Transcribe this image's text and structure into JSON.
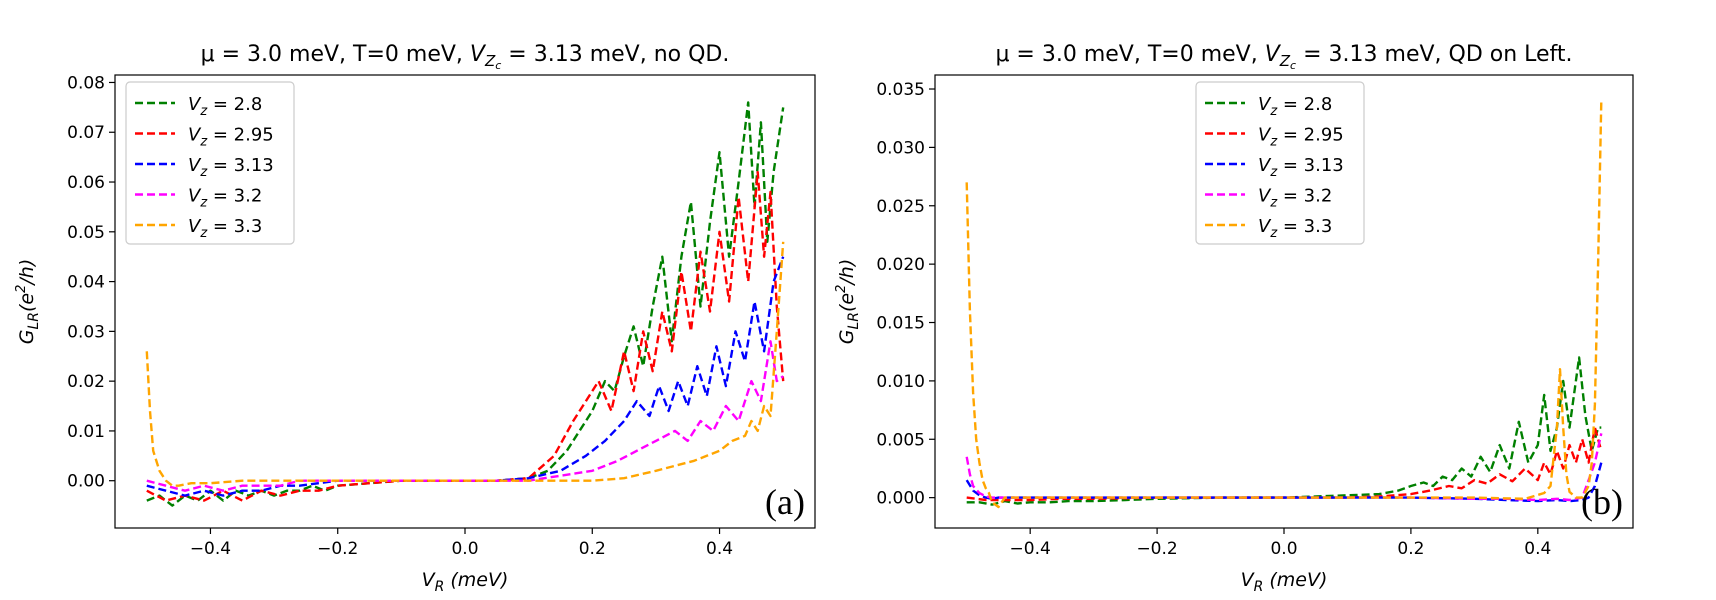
{
  "chart_data": [
    {
      "type": "line",
      "title_prefix": "μ = 3.0 meV, T=0 meV, ",
      "title_vz": "V",
      "title_vz_sub": "Z",
      "title_vz_subsub": "c",
      "title_suffix": " = 3.13 meV, no QD.",
      "xlabel_main": "V",
      "xlabel_sub": "R",
      "xlabel_unit": " (meV)",
      "ylabel_main": "G",
      "ylabel_sub": "LR",
      "ylabel_unit": "(e",
      "ylabel_sup": "2",
      "ylabel_tail": "/h)",
      "panel_label": "(a)",
      "xlim": [
        -0.55,
        0.55
      ],
      "ylim": [
        -0.0095,
        0.0815
      ],
      "xticks": [
        -0.4,
        -0.2,
        0.0,
        0.2,
        0.4
      ],
      "xtick_labels": [
        "−0.4",
        "−0.2",
        "0.0",
        "0.2",
        "0.4"
      ],
      "yticks": [
        0.0,
        0.01,
        0.02,
        0.03,
        0.04,
        0.05,
        0.06,
        0.07,
        0.08
      ],
      "ytick_labels": [
        "0.00",
        "0.01",
        "0.02",
        "0.03",
        "0.04",
        "0.05",
        "0.06",
        "0.07",
        "0.08"
      ],
      "legend_position": "upper-left",
      "series": [
        {
          "name": "2.8",
          "label_prefix": "V",
          "label_sub": "z",
          "label_value": " = 2.8",
          "color": "#008000",
          "x": [
            -0.5,
            -0.48,
            -0.46,
            -0.44,
            -0.42,
            -0.4,
            -0.38,
            -0.36,
            -0.34,
            -0.32,
            -0.3,
            -0.28,
            -0.26,
            -0.24,
            -0.22,
            -0.2,
            -0.15,
            -0.1,
            -0.05,
            0.0,
            0.05,
            0.1,
            0.13,
            0.16,
            0.18,
            0.2,
            0.22,
            0.235,
            0.25,
            0.265,
            0.28,
            0.295,
            0.31,
            0.325,
            0.34,
            0.355,
            0.37,
            0.385,
            0.4,
            0.415,
            0.43,
            0.445,
            0.455,
            0.465,
            0.475,
            0.485,
            0.5
          ],
          "y": [
            -0.004,
            -0.003,
            -0.005,
            -0.003,
            -0.004,
            -0.002,
            -0.004,
            -0.002,
            -0.003,
            -0.002,
            -0.003,
            -0.002,
            -0.002,
            -0.001,
            -0.002,
            -0.001,
            -0.0005,
            0.0,
            0.0,
            0.0,
            0.0,
            0.0005,
            0.002,
            0.006,
            0.01,
            0.014,
            0.02,
            0.018,
            0.025,
            0.031,
            0.023,
            0.035,
            0.045,
            0.028,
            0.045,
            0.056,
            0.035,
            0.052,
            0.066,
            0.045,
            0.06,
            0.076,
            0.055,
            0.072,
            0.048,
            0.062,
            0.075
          ]
        },
        {
          "name": "2.95",
          "label_prefix": "V",
          "label_sub": "z",
          "label_value": " = 2.95",
          "color": "#ff0000",
          "x": [
            -0.5,
            -0.47,
            -0.44,
            -0.41,
            -0.38,
            -0.35,
            -0.32,
            -0.29,
            -0.26,
            -0.23,
            -0.2,
            -0.15,
            -0.1,
            -0.05,
            0.0,
            0.05,
            0.1,
            0.14,
            0.17,
            0.19,
            0.21,
            0.23,
            0.25,
            0.265,
            0.28,
            0.295,
            0.31,
            0.325,
            0.34,
            0.355,
            0.37,
            0.385,
            0.4,
            0.415,
            0.43,
            0.445,
            0.46,
            0.47,
            0.48,
            0.49,
            0.5
          ],
          "y": [
            -0.002,
            -0.004,
            -0.003,
            -0.004,
            -0.002,
            -0.004,
            -0.002,
            -0.003,
            -0.002,
            -0.002,
            -0.001,
            -0.0005,
            0.0,
            0.0,
            0.0,
            0.0,
            0.0005,
            0.005,
            0.012,
            0.016,
            0.02,
            0.014,
            0.026,
            0.018,
            0.03,
            0.022,
            0.034,
            0.026,
            0.042,
            0.03,
            0.046,
            0.034,
            0.05,
            0.036,
            0.057,
            0.04,
            0.062,
            0.045,
            0.058,
            0.035,
            0.02
          ]
        },
        {
          "name": "3.13",
          "label_prefix": "V",
          "label_sub": "z",
          "label_value": " = 3.13",
          "color": "#0000ff",
          "x": [
            -0.5,
            -0.47,
            -0.44,
            -0.41,
            -0.38,
            -0.35,
            -0.32,
            -0.29,
            -0.26,
            -0.23,
            -0.2,
            -0.15,
            -0.1,
            -0.05,
            0.0,
            0.05,
            0.1,
            0.15,
            0.19,
            0.22,
            0.25,
            0.27,
            0.29,
            0.305,
            0.32,
            0.335,
            0.35,
            0.365,
            0.38,
            0.395,
            0.41,
            0.425,
            0.44,
            0.455,
            0.47,
            0.485,
            0.5
          ],
          "y": [
            -0.001,
            -0.002,
            -0.003,
            -0.002,
            -0.003,
            -0.002,
            -0.002,
            -0.001,
            -0.001,
            -0.0005,
            0.0,
            0.0,
            0.0,
            0.0,
            0.0,
            0.0,
            0.0005,
            0.002,
            0.005,
            0.008,
            0.012,
            0.016,
            0.013,
            0.019,
            0.014,
            0.02,
            0.015,
            0.023,
            0.017,
            0.027,
            0.019,
            0.03,
            0.024,
            0.036,
            0.026,
            0.04,
            0.045
          ]
        },
        {
          "name": "3.2",
          "label_prefix": "V",
          "label_sub": "z",
          "label_value": " = 3.2",
          "color": "#ff00ff",
          "x": [
            -0.5,
            -0.47,
            -0.44,
            -0.41,
            -0.38,
            -0.35,
            -0.32,
            -0.29,
            -0.26,
            -0.23,
            -0.2,
            -0.15,
            -0.1,
            -0.05,
            0.0,
            0.05,
            0.1,
            0.15,
            0.2,
            0.24,
            0.27,
            0.3,
            0.33,
            0.35,
            0.37,
            0.39,
            0.41,
            0.43,
            0.45,
            0.465,
            0.48,
            0.49,
            0.5
          ],
          "y": [
            0.0,
            -0.001,
            -0.002,
            -0.001,
            -0.002,
            -0.001,
            -0.001,
            -0.001,
            0.0,
            0.0,
            0.0,
            0.0,
            0.0,
            0.0,
            0.0,
            0.0,
            0.0,
            0.001,
            0.002,
            0.004,
            0.006,
            0.008,
            0.01,
            0.008,
            0.012,
            0.01,
            0.015,
            0.012,
            0.02,
            0.016,
            0.028,
            0.02,
            0.021
          ]
        },
        {
          "name": "3.3",
          "label_prefix": "V",
          "label_sub": "z",
          "label_value": " = 3.3",
          "color": "#ffa500",
          "x": [
            -0.5,
            -0.495,
            -0.49,
            -0.48,
            -0.47,
            -0.46,
            -0.45,
            -0.43,
            -0.4,
            -0.35,
            -0.3,
            -0.25,
            -0.2,
            -0.1,
            0.0,
            0.1,
            0.2,
            0.25,
            0.3,
            0.33,
            0.36,
            0.38,
            0.4,
            0.42,
            0.44,
            0.45,
            0.46,
            0.47,
            0.48,
            0.49,
            0.5
          ],
          "y": [
            0.026,
            0.014,
            0.006,
            0.002,
            0.0,
            -0.001,
            -0.001,
            -0.0005,
            -0.0005,
            0.0,
            0.0,
            0.0,
            0.0,
            0.0,
            0.0,
            0.0,
            0.0,
            0.0005,
            0.002,
            0.003,
            0.004,
            0.005,
            0.006,
            0.008,
            0.009,
            0.012,
            0.01,
            0.015,
            0.013,
            0.03,
            0.048
          ]
        }
      ]
    },
    {
      "type": "line",
      "title_prefix": "μ = 3.0 meV, T=0 meV, ",
      "title_vz": "V",
      "title_vz_sub": "Z",
      "title_vz_subsub": "c",
      "title_suffix": " = 3.13 meV, QD on Left.",
      "xlabel_main": "V",
      "xlabel_sub": "R",
      "xlabel_unit": " (meV)",
      "ylabel_main": "G",
      "ylabel_sub": "LR",
      "ylabel_unit": "(e",
      "ylabel_sup": "2",
      "ylabel_tail": "/h)",
      "panel_label": "(b)",
      "xlim": [
        -0.55,
        0.55
      ],
      "ylim": [
        -0.0026,
        0.0362
      ],
      "xticks": [
        -0.4,
        -0.2,
        0.0,
        0.2,
        0.4
      ],
      "xtick_labels": [
        "−0.4",
        "−0.2",
        "0.0",
        "0.2",
        "0.4"
      ],
      "yticks": [
        0.0,
        0.005,
        0.01,
        0.015,
        0.02,
        0.025,
        0.03,
        0.035
      ],
      "ytick_labels": [
        "0.000",
        "0.005",
        "0.010",
        "0.015",
        "0.020",
        "0.025",
        "0.030",
        "0.035"
      ],
      "legend_position": "upper-center",
      "series": [
        {
          "name": "2.8",
          "label_prefix": "V",
          "label_sub": "z",
          "label_value": " = 2.8",
          "color": "#008000",
          "x": [
            -0.5,
            -0.48,
            -0.46,
            -0.44,
            -0.42,
            -0.4,
            -0.37,
            -0.34,
            -0.3,
            -0.25,
            -0.2,
            -0.1,
            0.0,
            0.1,
            0.15,
            0.18,
            0.2,
            0.22,
            0.235,
            0.25,
            0.265,
            0.28,
            0.295,
            0.31,
            0.325,
            0.34,
            0.355,
            0.37,
            0.385,
            0.4,
            0.41,
            0.42,
            0.43,
            0.44,
            0.45,
            0.465,
            0.475,
            0.485,
            0.495,
            0.5
          ],
          "y": [
            -0.0004,
            -0.0004,
            -0.0006,
            -0.0003,
            -0.0005,
            -0.0004,
            -0.0004,
            -0.0003,
            -0.0003,
            -0.0002,
            -0.0001,
            0.0,
            0.0,
            0.0002,
            0.0003,
            0.0006,
            0.001,
            0.0013,
            0.001,
            0.0018,
            0.0015,
            0.0025,
            0.0018,
            0.0035,
            0.0022,
            0.0045,
            0.0025,
            0.0065,
            0.003,
            0.0045,
            0.0088,
            0.004,
            0.006,
            0.01,
            0.006,
            0.012,
            0.007,
            0.004,
            0.006,
            0.006
          ]
        },
        {
          "name": "2.95",
          "label_prefix": "V",
          "label_sub": "z",
          "label_value": " = 2.95",
          "color": "#ff0000",
          "x": [
            -0.5,
            -0.47,
            -0.44,
            -0.4,
            -0.35,
            -0.3,
            -0.2,
            -0.1,
            0.0,
            0.1,
            0.15,
            0.2,
            0.23,
            0.26,
            0.28,
            0.3,
            0.32,
            0.34,
            0.36,
            0.38,
            0.4,
            0.41,
            0.42,
            0.43,
            0.44,
            0.45,
            0.46,
            0.47,
            0.48,
            0.49,
            0.5
          ],
          "y": [
            0.0,
            -0.0002,
            -0.0002,
            -0.0002,
            -0.0001,
            -0.0001,
            0.0,
            0.0,
            0.0,
            0.0,
            0.0001,
            0.0003,
            0.0006,
            0.001,
            0.0008,
            0.0015,
            0.0012,
            0.002,
            0.0014,
            0.0025,
            0.0015,
            0.003,
            0.002,
            0.004,
            0.0025,
            0.0045,
            0.003,
            0.005,
            0.003,
            0.006,
            0.004
          ]
        },
        {
          "name": "3.13",
          "label_prefix": "V",
          "label_sub": "z",
          "label_value": " = 3.13",
          "color": "#0000ff",
          "x": [
            -0.5,
            -0.49,
            -0.48,
            -0.47,
            -0.46,
            -0.45,
            -0.4,
            -0.3,
            -0.2,
            -0.1,
            0.0,
            0.1,
            0.2,
            0.3,
            0.35,
            0.4,
            0.43,
            0.45,
            0.47,
            0.48,
            0.49,
            0.5
          ],
          "y": [
            0.0015,
            0.0006,
            0.0002,
            0.0,
            -0.0001,
            0.0,
            0.0,
            0.0,
            0.0,
            0.0,
            0.0,
            0.0,
            0.0,
            -0.0001,
            -0.0002,
            -0.0003,
            -0.0002,
            -0.0003,
            -0.0002,
            0.0,
            0.001,
            0.003
          ]
        },
        {
          "name": "3.2",
          "label_prefix": "V",
          "label_sub": "z",
          "label_value": " = 3.2",
          "color": "#ff00ff",
          "x": [
            -0.5,
            -0.495,
            -0.49,
            -0.48,
            -0.47,
            -0.46,
            -0.45,
            -0.4,
            -0.3,
            -0.2,
            -0.1,
            0.0,
            0.1,
            0.2,
            0.3,
            0.35,
            0.4,
            0.43,
            0.45,
            0.47,
            0.48,
            0.49,
            0.5
          ],
          "y": [
            0.0035,
            0.002,
            0.001,
            0.0004,
            0.0001,
            0.0,
            0.0,
            0.0,
            0.0,
            0.0,
            0.0,
            0.0,
            0.0,
            0.0,
            -0.0001,
            -0.0001,
            -0.0002,
            -0.0001,
            -0.0002,
            0.0,
            0.0015,
            0.003,
            0.0055
          ]
        },
        {
          "name": "3.3",
          "label_prefix": "V",
          "label_sub": "z",
          "label_value": " = 3.3",
          "color": "#ffa500",
          "x": [
            -0.5,
            -0.495,
            -0.49,
            -0.485,
            -0.48,
            -0.475,
            -0.47,
            -0.465,
            -0.46,
            -0.45,
            -0.44,
            -0.42,
            -0.4,
            -0.3,
            -0.2,
            -0.1,
            0.0,
            0.1,
            0.2,
            0.3,
            0.38,
            0.41,
            0.42,
            0.43,
            0.435,
            0.44,
            0.445,
            0.45,
            0.46,
            0.47,
            0.48,
            0.485,
            0.49,
            0.495,
            0.5
          ],
          "y": [
            0.027,
            0.016,
            0.009,
            0.005,
            0.003,
            0.0015,
            0.0008,
            0.0004,
            -0.0004,
            -0.0008,
            0.0,
            0.0,
            0.0,
            0.0,
            0.0,
            0.0,
            0.0,
            0.0,
            0.0,
            0.0,
            -0.0001,
            0.0004,
            0.001,
            0.006,
            0.011,
            0.006,
            0.002,
            0.0005,
            0.0,
            0.0,
            0.001,
            0.003,
            0.008,
            0.02,
            0.034
          ]
        }
      ]
    }
  ]
}
